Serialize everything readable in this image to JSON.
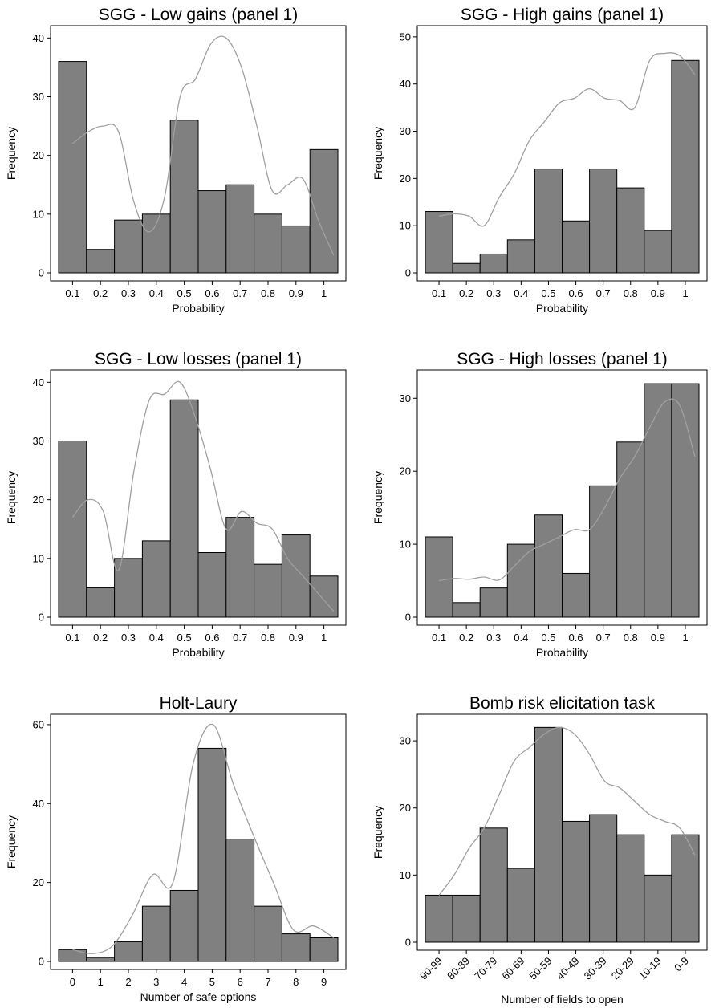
{
  "chart_data": [
    {
      "type": "bar",
      "title": "SGG - Low gains (panel 1)",
      "xlabel": "Probability",
      "ylabel": "Frequency",
      "categories": [
        "0.1",
        "0.2",
        "0.3",
        "0.4",
        "0.5",
        "0.6",
        "0.7",
        "0.8",
        "0.9",
        "1"
      ],
      "values": [
        36,
        4,
        9,
        10,
        26,
        14,
        15,
        10,
        8,
        21
      ],
      "yticks": [
        0,
        10,
        20,
        30,
        40
      ],
      "ylim": [
        0,
        41
      ],
      "density_curve": [
        22,
        24,
        25,
        24,
        12,
        7,
        13,
        30,
        33,
        39,
        40,
        35,
        25,
        14,
        15,
        16,
        9,
        3
      ]
    },
    {
      "type": "bar",
      "title": "SGG - High gains (panel 1)",
      "xlabel": "Probability",
      "ylabel": "Frequency",
      "categories": [
        "0.1",
        "0.2",
        "0.3",
        "0.4",
        "0.5",
        "0.6",
        "0.7",
        "0.8",
        "0.9",
        "1"
      ],
      "values": [
        13,
        2,
        4,
        7,
        22,
        11,
        22,
        18,
        9,
        45
      ],
      "yticks": [
        0,
        10,
        20,
        30,
        40,
        50
      ],
      "ylim": [
        0,
        51
      ],
      "density_curve": [
        12,
        12.5,
        12,
        10,
        16,
        21,
        28,
        32,
        36,
        37,
        39,
        37,
        36.5,
        35,
        45,
        46.5,
        46,
        42
      ]
    },
    {
      "type": "bar",
      "title": "SGG - Low losses (panel 1)",
      "xlabel": "Probability",
      "ylabel": "Frequency",
      "categories": [
        "0.1",
        "0.2",
        "0.3",
        "0.4",
        "0.5",
        "0.6",
        "0.7",
        "0.8",
        "0.9",
        "1"
      ],
      "values": [
        30,
        5,
        10,
        13,
        37,
        11,
        17,
        9,
        14,
        7
      ],
      "yticks": [
        0,
        10,
        20,
        30,
        40
      ],
      "ylim": [
        0,
        41
      ],
      "density_curve": [
        17,
        20,
        18,
        8,
        25,
        37,
        38,
        40,
        34,
        25,
        15,
        18,
        16,
        15,
        10,
        7,
        4,
        1
      ]
    },
    {
      "type": "bar",
      "title": "SGG - High losses (panel 1)",
      "xlabel": "Probability",
      "ylabel": "Frequency",
      "categories": [
        "0.1",
        "0.2",
        "0.3",
        "0.4",
        "0.5",
        "0.6",
        "0.7",
        "0.8",
        "0.9",
        "1"
      ],
      "values": [
        11,
        2,
        4,
        10,
        14,
        6,
        18,
        24,
        32,
        32
      ],
      "yticks": [
        0,
        10,
        20,
        30
      ],
      "ylim": [
        0,
        33
      ],
      "density_curve": [
        5,
        5.3,
        5.2,
        5.5,
        5.1,
        7,
        9,
        10,
        11,
        12,
        12,
        15,
        19,
        22,
        26,
        29.5,
        29,
        22
      ]
    },
    {
      "type": "bar",
      "title": "Holt-Laury",
      "xlabel": "Number of safe options",
      "ylabel": "Frequency",
      "categories": [
        "0",
        "1",
        "2",
        "3",
        "4",
        "5",
        "6",
        "7",
        "8",
        "9"
      ],
      "values": [
        3,
        1,
        5,
        14,
        18,
        54,
        31,
        14,
        7,
        6
      ],
      "yticks": [
        0,
        20,
        40,
        60
      ],
      "ylim": [
        0,
        61
      ],
      "density_curve": [
        3,
        2,
        4,
        12,
        22,
        20,
        50,
        60,
        45,
        32,
        20,
        8,
        9,
        6
      ]
    },
    {
      "type": "bar",
      "title": "Bomb risk elicitation task",
      "xlabel": "Number of fields to open",
      "ylabel": "Frequency",
      "categories": [
        "90-99",
        "80-89",
        "70-79",
        "60-69",
        "50-59",
        "40-49",
        "30-39",
        "20-29",
        "10-19",
        "0-9"
      ],
      "values": [
        7,
        7,
        17,
        11,
        32,
        18,
        19,
        16,
        10,
        16
      ],
      "yticks": [
        0,
        10,
        20,
        30
      ],
      "ylim": [
        0,
        33
      ],
      "density_curve": [
        7,
        10,
        14,
        17,
        22,
        27,
        29,
        31,
        32,
        31,
        28,
        24,
        23,
        21,
        19,
        18,
        17,
        13
      ]
    }
  ]
}
